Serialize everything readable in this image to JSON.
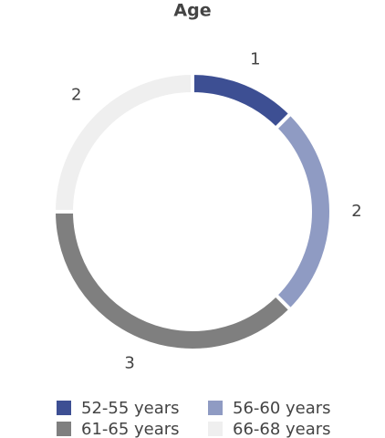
{
  "chart_data": {
    "type": "pie",
    "title": "Age",
    "categories": [
      "52-55 years",
      "56-60 years",
      "61-65 years",
      "66-68 years"
    ],
    "values": [
      1,
      2,
      3,
      2
    ],
    "colors": [
      "#3d4f93",
      "#8f9bc3",
      "#7f7f7f",
      "#efefef"
    ],
    "donut": true
  }
}
